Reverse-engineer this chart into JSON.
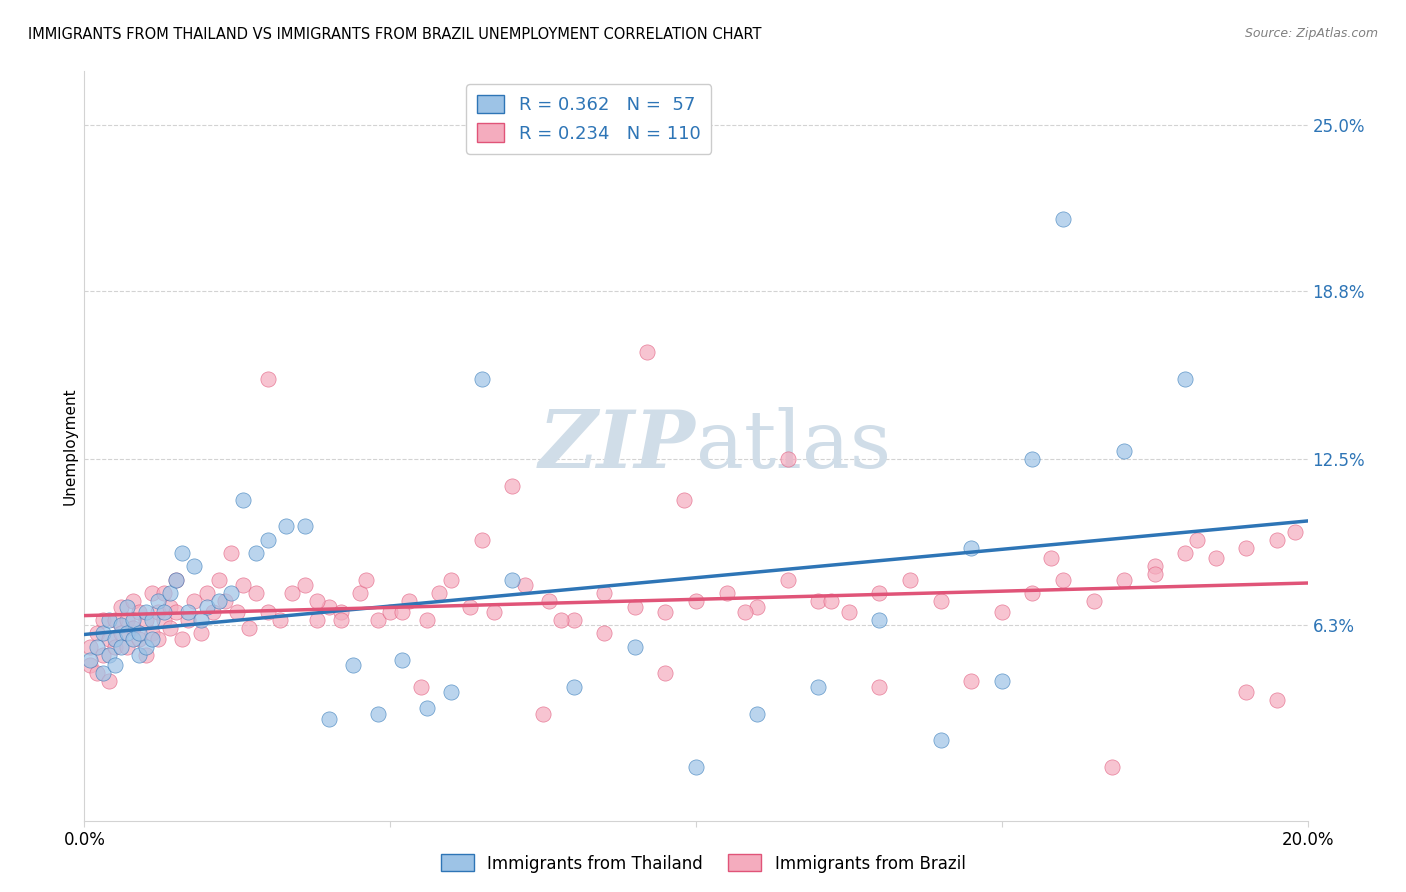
{
  "title": "IMMIGRANTS FROM THAILAND VS IMMIGRANTS FROM BRAZIL UNEMPLOYMENT CORRELATION CHART",
  "source": "Source: ZipAtlas.com",
  "ylabel": "Unemployment",
  "xlim": [
    0.0,
    0.2
  ],
  "ylim": [
    -0.01,
    0.27
  ],
  "ytick_vals": [
    0.063,
    0.125,
    0.188,
    0.25
  ],
  "ytick_labels": [
    "6.3%",
    "12.5%",
    "18.8%",
    "25.0%"
  ],
  "xtick_vals": [
    0.0,
    0.05,
    0.1,
    0.15,
    0.2
  ],
  "xtick_labels": [
    "0.0%",
    "",
    "",
    "",
    "20.0%"
  ],
  "r_thailand": 0.362,
  "n_thailand": 57,
  "r_brazil": 0.234,
  "n_brazil": 110,
  "color_thailand": "#9DC3E6",
  "color_brazil": "#F4ACBE",
  "trendline_thailand": "#2E75B6",
  "trendline_brazil": "#E05478",
  "watermark_color": "#D0DDE8",
  "thailand_x": [
    0.001,
    0.002,
    0.003,
    0.003,
    0.004,
    0.004,
    0.005,
    0.005,
    0.006,
    0.006,
    0.007,
    0.007,
    0.008,
    0.008,
    0.009,
    0.009,
    0.01,
    0.01,
    0.011,
    0.011,
    0.012,
    0.013,
    0.014,
    0.015,
    0.016,
    0.017,
    0.018,
    0.019,
    0.02,
    0.022,
    0.024,
    0.026,
    0.028,
    0.03,
    0.033,
    0.036,
    0.04,
    0.044,
    0.048,
    0.052,
    0.056,
    0.06,
    0.065,
    0.07,
    0.08,
    0.09,
    0.1,
    0.11,
    0.12,
    0.13,
    0.14,
    0.15,
    0.16,
    0.17,
    0.18,
    0.155,
    0.145
  ],
  "thailand_y": [
    0.05,
    0.055,
    0.045,
    0.06,
    0.052,
    0.065,
    0.048,
    0.058,
    0.063,
    0.055,
    0.06,
    0.07,
    0.058,
    0.065,
    0.052,
    0.06,
    0.068,
    0.055,
    0.065,
    0.058,
    0.072,
    0.068,
    0.075,
    0.08,
    0.09,
    0.068,
    0.085,
    0.065,
    0.07,
    0.072,
    0.075,
    0.11,
    0.09,
    0.095,
    0.1,
    0.1,
    0.028,
    0.048,
    0.03,
    0.05,
    0.032,
    0.038,
    0.155,
    0.08,
    0.04,
    0.055,
    0.01,
    0.03,
    0.04,
    0.065,
    0.02,
    0.042,
    0.215,
    0.128,
    0.155,
    0.125,
    0.092
  ],
  "brazil_x": [
    0.001,
    0.001,
    0.002,
    0.002,
    0.003,
    0.003,
    0.004,
    0.004,
    0.005,
    0.005,
    0.006,
    0.006,
    0.007,
    0.007,
    0.008,
    0.008,
    0.009,
    0.009,
    0.01,
    0.01,
    0.011,
    0.011,
    0.012,
    0.012,
    0.013,
    0.013,
    0.014,
    0.014,
    0.015,
    0.015,
    0.016,
    0.017,
    0.018,
    0.019,
    0.02,
    0.021,
    0.022,
    0.023,
    0.024,
    0.025,
    0.026,
    0.027,
    0.028,
    0.03,
    0.032,
    0.034,
    0.036,
    0.038,
    0.04,
    0.042,
    0.045,
    0.048,
    0.05,
    0.053,
    0.056,
    0.06,
    0.063,
    0.067,
    0.072,
    0.076,
    0.08,
    0.085,
    0.09,
    0.095,
    0.1,
    0.105,
    0.11,
    0.115,
    0.12,
    0.125,
    0.13,
    0.135,
    0.14,
    0.15,
    0.155,
    0.16,
    0.165,
    0.17,
    0.175,
    0.18,
    0.185,
    0.19,
    0.195,
    0.198,
    0.038,
    0.042,
    0.046,
    0.052,
    0.058,
    0.065,
    0.07,
    0.078,
    0.085,
    0.092,
    0.098,
    0.108,
    0.115,
    0.122,
    0.13,
    0.145,
    0.158,
    0.168,
    0.175,
    0.182,
    0.19,
    0.195,
    0.03,
    0.055,
    0.075,
    0.095
  ],
  "brazil_y": [
    0.055,
    0.048,
    0.06,
    0.045,
    0.052,
    0.065,
    0.058,
    0.042,
    0.065,
    0.055,
    0.06,
    0.07,
    0.055,
    0.065,
    0.062,
    0.072,
    0.058,
    0.068,
    0.052,
    0.065,
    0.06,
    0.075,
    0.068,
    0.058,
    0.065,
    0.075,
    0.062,
    0.07,
    0.068,
    0.08,
    0.058,
    0.065,
    0.072,
    0.06,
    0.075,
    0.068,
    0.08,
    0.072,
    0.09,
    0.068,
    0.078,
    0.062,
    0.075,
    0.068,
    0.065,
    0.075,
    0.078,
    0.065,
    0.07,
    0.068,
    0.075,
    0.065,
    0.068,
    0.072,
    0.065,
    0.08,
    0.07,
    0.068,
    0.078,
    0.072,
    0.065,
    0.075,
    0.07,
    0.068,
    0.072,
    0.075,
    0.07,
    0.08,
    0.072,
    0.068,
    0.075,
    0.08,
    0.072,
    0.068,
    0.075,
    0.08,
    0.072,
    0.08,
    0.085,
    0.09,
    0.088,
    0.092,
    0.095,
    0.098,
    0.072,
    0.065,
    0.08,
    0.068,
    0.075,
    0.095,
    0.115,
    0.065,
    0.06,
    0.165,
    0.11,
    0.068,
    0.125,
    0.072,
    0.04,
    0.042,
    0.088,
    0.01,
    0.082,
    0.095,
    0.038,
    0.035,
    0.155,
    0.04,
    0.03,
    0.045
  ]
}
